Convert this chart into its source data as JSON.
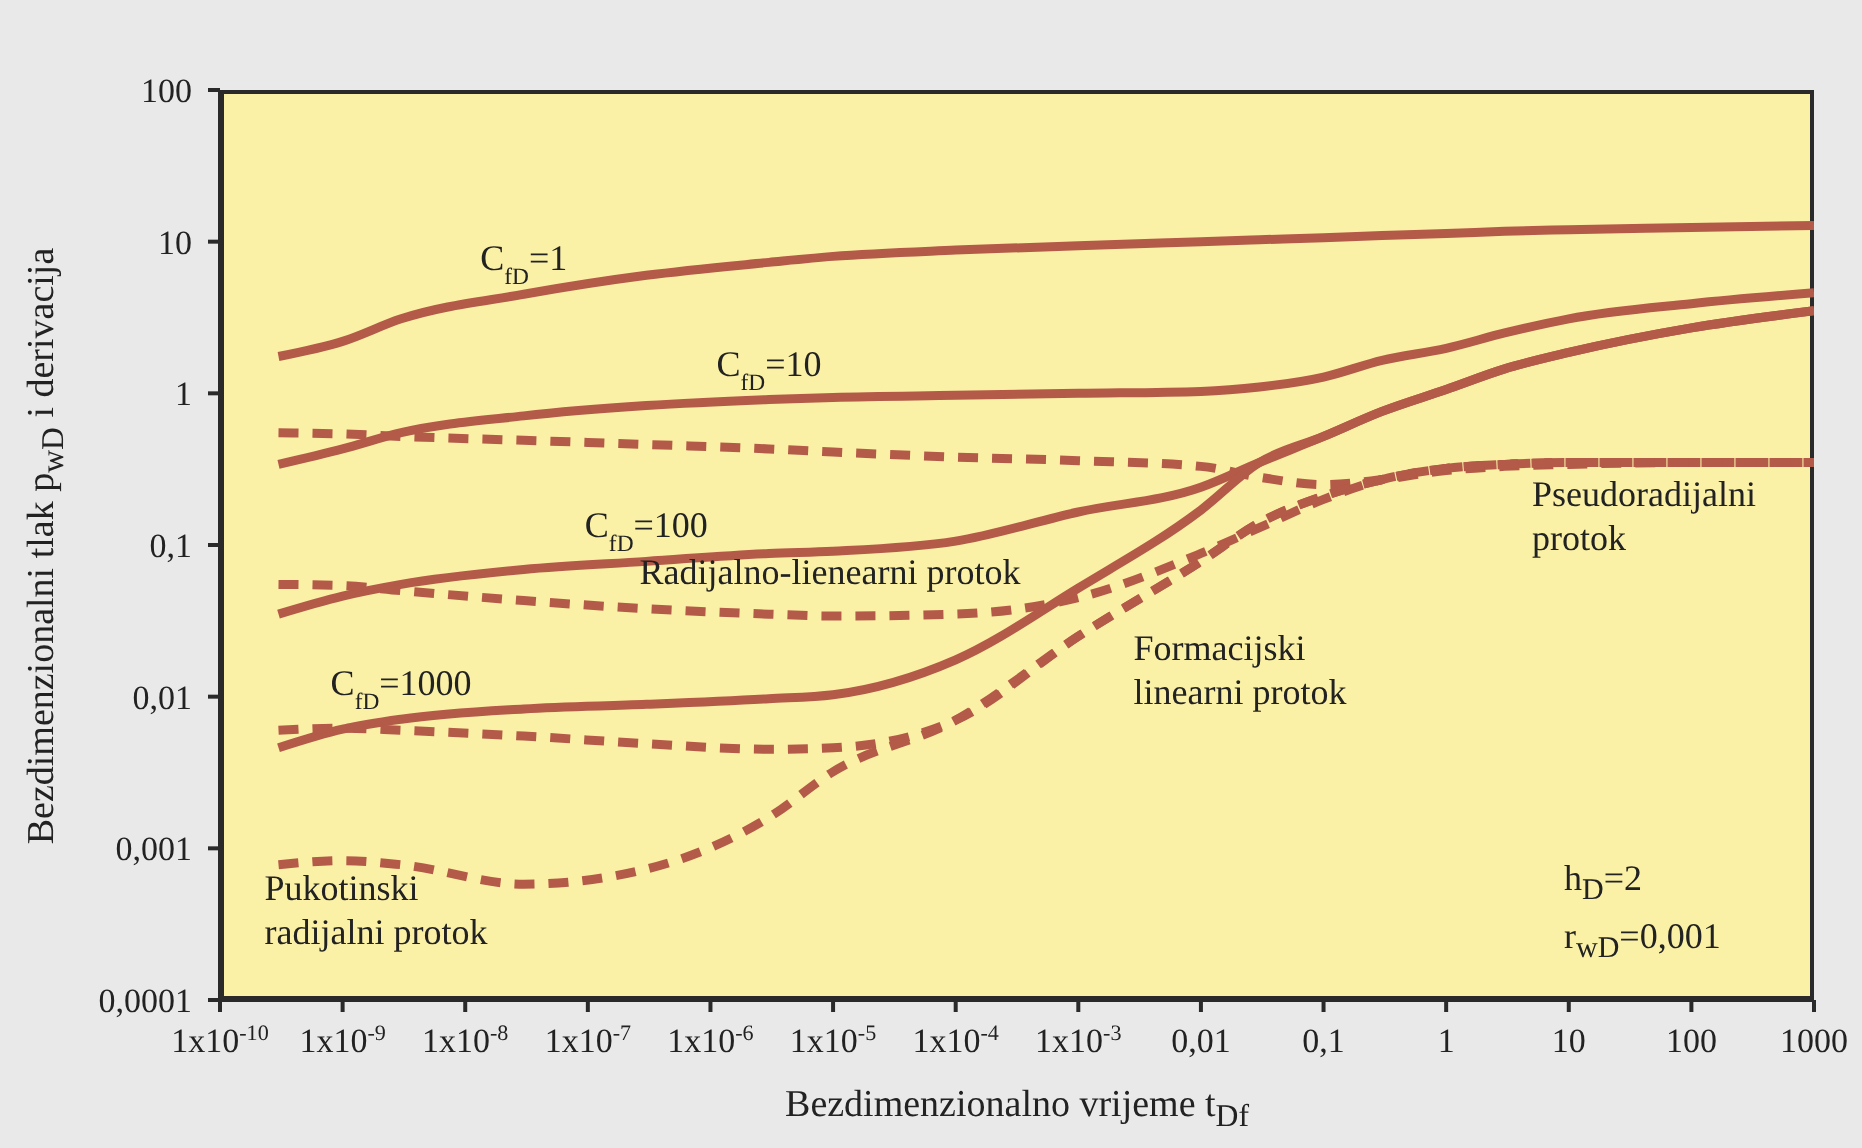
{
  "chart_data": {
    "type": "line",
    "xlabel": "Bezdimenzionalno vrijeme t$_{Df}$",
    "ylabel": "Bezdimenzionalni tlak p$_{wD}$ i derivacija",
    "log": "xy",
    "xlim": [
      1e-10,
      1000
    ],
    "ylim": [
      0.0001,
      100
    ],
    "xticks": [
      {
        "value": 1e-10,
        "label": "1x10$^{-10}$"
      },
      {
        "value": 1e-09,
        "label": "1x10$^{-9}$"
      },
      {
        "value": 1e-08,
        "label": "1x10$^{-8}$"
      },
      {
        "value": 1e-07,
        "label": "1x10$^{-7}$"
      },
      {
        "value": 1e-06,
        "label": "1x10$^{-6}$"
      },
      {
        "value": 1e-05,
        "label": "1x10$^{-5}$"
      },
      {
        "value": 0.0001,
        "label": "1x10$^{-4}$"
      },
      {
        "value": 0.001,
        "label": "1x10$^{-3}$"
      },
      {
        "value": 0.01,
        "label": "0,01"
      },
      {
        "value": 0.1,
        "label": "0,1"
      },
      1,
      10,
      100,
      1000
    ],
    "yticks": [
      {
        "value": 0.0001,
        "label": "0,0001"
      },
      {
        "value": 0.001,
        "label": "0,001"
      },
      {
        "value": 0.01,
        "label": "0,01"
      },
      {
        "value": 0.1,
        "label": "0,1"
      },
      1,
      10,
      100
    ],
    "marker": "none",
    "x": [
      3e-10,
      1e-09,
      3e-09,
      3e-08,
      3e-07,
      3e-06,
      1e-05,
      0.0001,
      0.001,
      0.01,
      0.03,
      0.1,
      0.3,
      1,
      3,
      10,
      100,
      1000
    ],
    "series": [
      {
        "name": "C$_{fD}$=1",
        "color": "#b45a48",
        "line_style": "solid",
        "values": [
          1.75,
          2.2,
          3.1,
          4.5,
          6,
          7.3,
          8,
          8.8,
          9.4,
          10,
          10.3,
          10.6,
          11,
          11.3,
          11.7,
          12,
          12.4,
          12.8
        ]
      },
      {
        "name": "C$_{fD}$=10",
        "color": "#b45a48",
        "line_style": "solid",
        "values": [
          0.34,
          0.43,
          0.55,
          0.71,
          0.83,
          0.91,
          0.94,
          0.97,
          1.0,
          1.03,
          1.1,
          1.28,
          1.65,
          1.98,
          2.5,
          3.1,
          3.9,
          4.6
        ]
      },
      {
        "color": "#b45a48",
        "line_style": "dashed",
        "values": [
          0.55,
          0.54,
          0.52,
          0.49,
          0.46,
          0.43,
          0.41,
          0.38,
          0.36,
          0.33,
          0.28,
          0.25,
          0.27,
          0.31,
          0.33,
          0.34,
          0.35,
          0.35
        ]
      },
      {
        "name": "C$_{fD}$=100",
        "color": "#b45a48",
        "line_style": "solid",
        "values": [
          0.035,
          0.046,
          0.055,
          0.069,
          0.078,
          0.088,
          0.091,
          0.106,
          0.165,
          0.24,
          0.35,
          0.52,
          0.76,
          1.06,
          1.45,
          1.86,
          2.7,
          3.5
        ]
      },
      {
        "color": "#b45a48",
        "line_style": "dashed",
        "values": [
          0.055,
          0.054,
          0.05,
          0.043,
          0.038,
          0.035,
          0.034,
          0.035,
          0.045,
          0.088,
          0.13,
          0.2,
          0.27,
          0.32,
          0.34,
          0.35,
          0.35,
          0.35
        ]
      },
      {
        "name": "C$_{fD}$=1000",
        "color": "#b45a48",
        "line_style": "solid",
        "values": [
          0.0046,
          0.0061,
          0.0071,
          0.0083,
          0.0089,
          0.0097,
          0.0103,
          0.0175,
          0.052,
          0.17,
          0.35,
          0.52,
          0.76,
          1.06,
          1.45,
          1.86,
          2.7,
          3.5
        ]
      },
      {
        "color": "#b45a48",
        "line_style": "dashed",
        "values": [
          0.006,
          0.0062,
          0.006,
          0.0055,
          0.0049,
          0.0045,
          0.0046,
          0.007,
          0.025,
          0.078,
          0.14,
          0.21,
          0.27,
          0.32,
          0.34,
          0.35,
          0.35,
          0.35
        ]
      },
      {
        "color": "#b45a48",
        "line_style": "dashed",
        "values": [
          0.00078,
          0.00083,
          0.00078,
          0.00058,
          0.00073,
          0.0016,
          0.0032,
          0.007,
          0.025,
          0.078,
          0.14,
          0.21,
          0.27,
          0.32,
          0.34,
          0.35,
          0.35,
          0.35
        ]
      }
    ],
    "annotations": [
      "Radijalno-lienearni protok",
      "Pukotinski\nradijalni protok",
      "Formacijski\nlinearni protok",
      "Pseudoradijalni\nprotok",
      "h$_{D}$=2\nr$_{wD}$=0,001"
    ]
  }
}
